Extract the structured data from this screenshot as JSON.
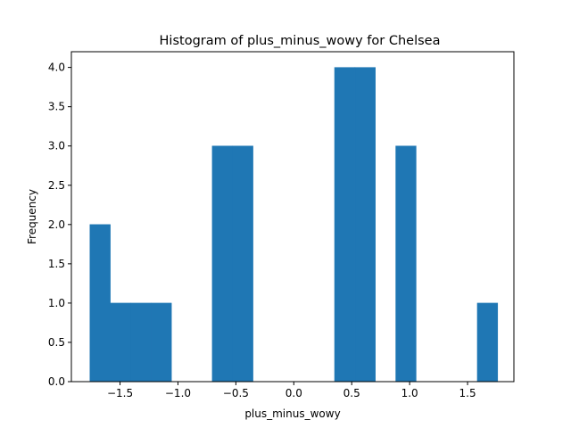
{
  "chart_data": {
    "type": "bar",
    "title": "Histogram of plus_minus_wowy for Chelsea",
    "xlabel": "plus_minus_wowy",
    "ylabel": "Frequency",
    "xlim": [
      -1.92,
      1.9
    ],
    "ylim": [
      0,
      4.2
    ],
    "grid": false,
    "bar_color": "#1f77b4",
    "x_ticks": [
      -1.5,
      -1.0,
      -0.5,
      0.0,
      0.5,
      1.0,
      1.5
    ],
    "x_tick_labels": [
      "−1.5",
      "−1.0",
      "−0.5",
      "0.0",
      "0.5",
      "1.0",
      "1.5"
    ],
    "y_ticks": [
      0.0,
      0.5,
      1.0,
      1.5,
      2.0,
      2.5,
      3.0,
      3.5,
      4.0
    ],
    "y_tick_labels": [
      "0.0",
      "0.5",
      "1.0",
      "1.5",
      "2.0",
      "2.5",
      "3.0",
      "3.5",
      "4.0"
    ],
    "bins": [
      {
        "x0": -1.76,
        "x1": -1.584,
        "count": 2
      },
      {
        "x0": -1.584,
        "x1": -1.408,
        "count": 1
      },
      {
        "x0": -1.408,
        "x1": -1.232,
        "count": 1
      },
      {
        "x0": -1.232,
        "x1": -1.056,
        "count": 1
      },
      {
        "x0": -1.056,
        "x1": -0.88,
        "count": 0
      },
      {
        "x0": -0.88,
        "x1": -0.704,
        "count": 0
      },
      {
        "x0": -0.704,
        "x1": -0.528,
        "count": 3
      },
      {
        "x0": -0.528,
        "x1": -0.352,
        "count": 3
      },
      {
        "x0": -0.352,
        "x1": -0.176,
        "count": 0
      },
      {
        "x0": -0.176,
        "x1": 0.0,
        "count": 0
      },
      {
        "x0": 0.0,
        "x1": 0.176,
        "count": 0
      },
      {
        "x0": 0.176,
        "x1": 0.352,
        "count": 0
      },
      {
        "x0": 0.352,
        "x1": 0.528,
        "count": 4
      },
      {
        "x0": 0.528,
        "x1": 0.704,
        "count": 4
      },
      {
        "x0": 0.704,
        "x1": 0.88,
        "count": 0
      },
      {
        "x0": 0.88,
        "x1": 1.056,
        "count": 3
      },
      {
        "x0": 1.056,
        "x1": 1.232,
        "count": 0
      },
      {
        "x0": 1.232,
        "x1": 1.408,
        "count": 0
      },
      {
        "x0": 1.408,
        "x1": 1.584,
        "count": 0
      },
      {
        "x0": 1.584,
        "x1": 1.76,
        "count": 1
      }
    ]
  }
}
